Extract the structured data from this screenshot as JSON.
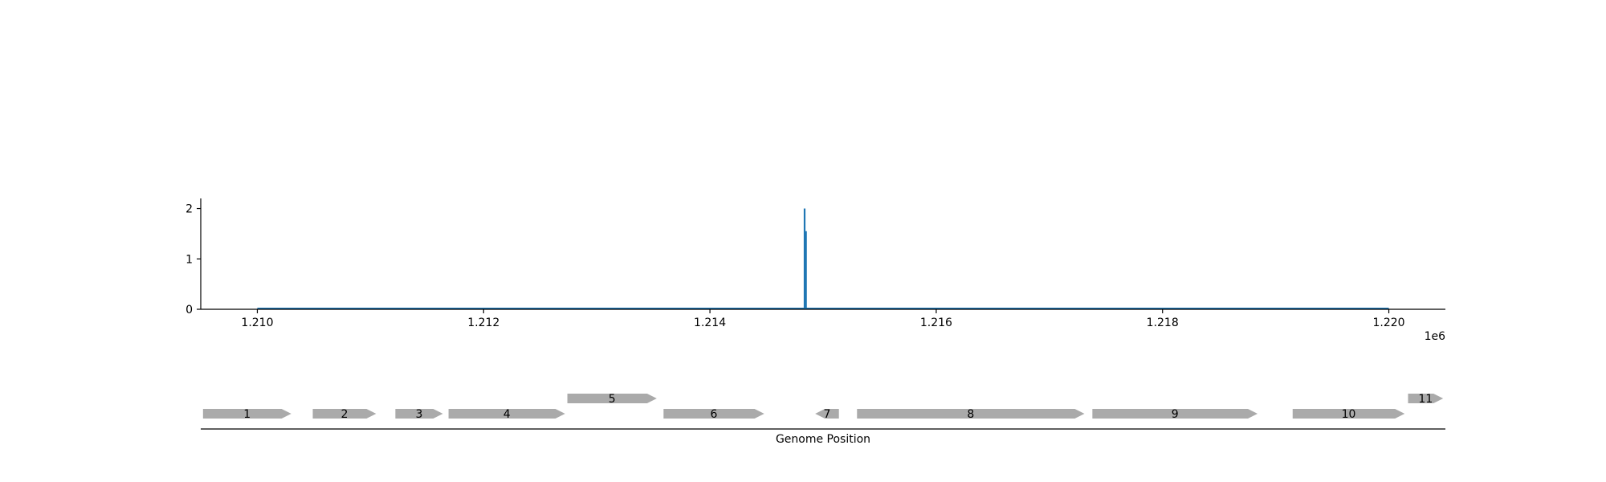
{
  "chart_data": [
    {
      "type": "bar",
      "title": "",
      "xlabel": "",
      "ylabel": "",
      "x_offset_label": "1e6",
      "xlim": [
        1209500,
        1220500
      ],
      "ylim": [
        0,
        2.2
      ],
      "x_ticks": [
        1210000,
        1212000,
        1214000,
        1216000,
        1218000,
        1220000
      ],
      "x_tick_labels": [
        "1.210",
        "1.212",
        "1.214",
        "1.216",
        "1.218",
        "1.220"
      ],
      "y_ticks": [
        0,
        1,
        2
      ],
      "y_tick_labels": [
        "0",
        "1",
        "2"
      ],
      "baseline_range": [
        1210000,
        1220000
      ],
      "color": "#1f77b4",
      "series": [
        {
          "x": [
            1214836,
            1214848
          ],
          "values": [
            2,
            1.55
          ]
        }
      ],
      "grid": false
    },
    {
      "type": "gene-map",
      "xlabel": "Genome Position",
      "xlim": [
        1209500,
        1220500
      ],
      "color": "#aaaaaa",
      "genes": [
        {
          "label": "1",
          "start": 1209520,
          "end": 1210300,
          "strand": "+",
          "row": 0
        },
        {
          "label": "2",
          "start": 1210490,
          "end": 1211050,
          "strand": "+",
          "row": 0
        },
        {
          "label": "3",
          "start": 1211220,
          "end": 1211640,
          "strand": "+",
          "row": 0
        },
        {
          "label": "4",
          "start": 1211690,
          "end": 1212720,
          "strand": "+",
          "row": 0
        },
        {
          "label": "5",
          "start": 1212740,
          "end": 1213530,
          "strand": "+",
          "row": 1
        },
        {
          "label": "6",
          "start": 1213590,
          "end": 1214480,
          "strand": "+",
          "row": 0
        },
        {
          "label": "7",
          "start": 1214930,
          "end": 1215140,
          "strand": "-",
          "row": 0
        },
        {
          "label": "8",
          "start": 1215300,
          "end": 1217310,
          "strand": "+",
          "row": 0
        },
        {
          "label": "9",
          "start": 1217380,
          "end": 1218840,
          "strand": "+",
          "row": 0
        },
        {
          "label": "10",
          "start": 1219150,
          "end": 1220140,
          "strand": "+",
          "row": 0
        },
        {
          "label": "11",
          "start": 1220170,
          "end": 1220480,
          "strand": "+",
          "row": 1
        }
      ]
    }
  ]
}
